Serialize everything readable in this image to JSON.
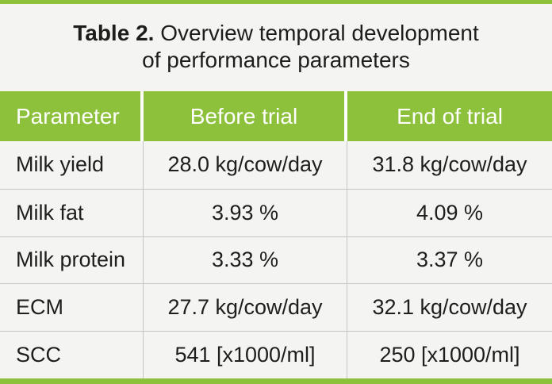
{
  "title": {
    "label": "Table 2.",
    "line1_rest": "Overview temporal development",
    "line2": "of performance parameters"
  },
  "table": {
    "columns": [
      "Parameter",
      "Before trial",
      "End of trial"
    ],
    "rows": [
      {
        "parameter": "Milk yield",
        "before": "28.0 kg/cow/day",
        "end": "31.8 kg/cow/day"
      },
      {
        "parameter": "Milk fat",
        "before": "3.93 %",
        "end": "4.09 %"
      },
      {
        "parameter": "Milk protein",
        "before": "3.33 %",
        "end": "3.37 %"
      },
      {
        "parameter": "ECM",
        "before": "27.7 kg/cow/day",
        "end": "32.1 kg/cow/day"
      },
      {
        "parameter": "SCC",
        "before": "541 [x1000/ml]",
        "end": "250 [x1000/ml]"
      }
    ]
  },
  "chart_data": {
    "type": "table",
    "title": "Table 2. Overview temporal development of performance parameters",
    "columns": [
      "Parameter",
      "Before trial",
      "End of trial"
    ],
    "rows": [
      [
        "Milk yield",
        "28.0 kg/cow/day",
        "31.8 kg/cow/day"
      ],
      [
        "Milk fat",
        "3.93 %",
        "4.09 %"
      ],
      [
        "Milk protein",
        "3.33 %",
        "3.37 %"
      ],
      [
        "ECM",
        "27.7 kg/cow/day",
        "32.1 kg/cow/day"
      ],
      [
        "SCC",
        "541 [x1000/ml]",
        "250 [x1000/ml]"
      ]
    ]
  },
  "colors": {
    "accent_green": "#8dc13c",
    "background": "#f4f4f2",
    "divider_gray": "#c6c6c4",
    "header_text": "#ffffff",
    "body_text": "#1e1e1c"
  }
}
